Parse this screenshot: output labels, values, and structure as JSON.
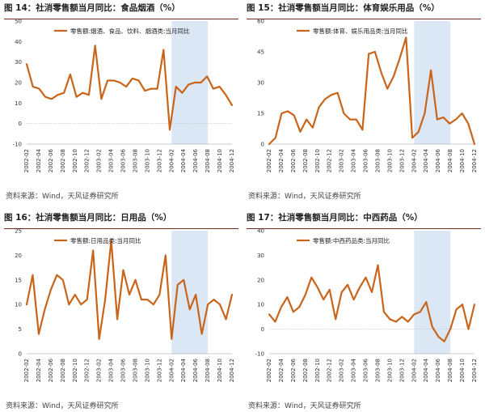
{
  "colors": {
    "line": "#c8651b",
    "shade": "#dbe7f5",
    "title_rule": "#7a2a1f"
  },
  "charts": [
    {
      "title": "图 14：社消零售额当月同比：食品烟酒（%）",
      "source": "资料来源：Wind，天风证券研究所"
    },
    {
      "title": "图 15：社消零售额当月同比：体育娱乐用品（%）",
      "source": "资料来源：Wind，天风证券研究所"
    },
    {
      "title": "图 16：社消零售额当月同比：日用品（%）",
      "source": "资料来源：Wind，天风证券研究所"
    },
    {
      "title": "图 17：社消零售额当月同比：中西药品（%）",
      "source": "资料来源：Wind，天风证券研究所"
    }
  ],
  "chart_data": [
    {
      "type": "line",
      "legend": "零售额:烟酒、食品、饮料、烟酒类:当月同比",
      "x_ticks": [
        "2002-02",
        "2002-04",
        "2002-06",
        "2002-08",
        "2002-10",
        "2002-12",
        "2003-02",
        "2003-04",
        "2003-06",
        "2003-08",
        "2003-10",
        "2003-12",
        "2004-02",
        "2004-04",
        "2004-06",
        "2004-08",
        "2004-10",
        "2004-12"
      ],
      "ylim": [
        -10,
        50
      ],
      "y_ticks": [
        -10,
        0,
        10,
        20,
        30,
        40,
        50
      ],
      "shade_range": [
        12,
        15
      ],
      "series": [
        {
          "name": "零售额:烟酒、食品、饮料、烟酒类:当月同比",
          "values": [
            29,
            18,
            17,
            13,
            12,
            14,
            15,
            24,
            13,
            15,
            14,
            38,
            12,
            21,
            21,
            20,
            18,
            22,
            21,
            16,
            17,
            17,
            36,
            -3,
            18,
            15,
            19,
            20,
            20,
            23,
            17,
            18,
            14,
            9
          ]
        }
      ]
    },
    {
      "type": "line",
      "legend": "零售额:体育、娱乐用品类:当月同比",
      "x_ticks": [
        "2002-02",
        "2002-04",
        "2002-06",
        "2002-08",
        "2002-10",
        "2002-12",
        "2003-02",
        "2003-04",
        "2003-06",
        "2003-08",
        "2003-10",
        "2003-12",
        "2004-02",
        "2004-04",
        "2004-06",
        "2004-08",
        "2004-10",
        "2004-12"
      ],
      "ylim": [
        0,
        60
      ],
      "y_ticks": [
        0,
        15,
        30,
        45,
        60
      ],
      "shade_range": [
        12,
        15
      ],
      "series": [
        {
          "name": "零售额:体育、娱乐用品类:当月同比",
          "values": [
            0,
            3,
            15,
            16,
            14,
            6,
            12,
            8,
            18,
            22,
            24,
            25,
            15,
            12,
            12,
            7,
            44,
            45,
            35,
            27,
            33,
            42,
            52,
            3,
            6,
            15,
            36,
            12,
            13,
            10,
            12,
            15,
            10,
            0
          ]
        }
      ]
    },
    {
      "type": "line",
      "legend": "零售额:日用品类:当月同比",
      "x_ticks": [
        "2002-02",
        "2002-04",
        "2002-06",
        "2002-08",
        "2002-10",
        "2002-12",
        "2003-02",
        "2003-04",
        "2003-06",
        "2003-08",
        "2003-10",
        "2003-12",
        "2004-02",
        "2004-04",
        "2004-06",
        "2004-08",
        "2004-10",
        "2004-12"
      ],
      "ylim": [
        0,
        25
      ],
      "y_ticks": [
        0,
        5,
        10,
        15,
        20,
        25
      ],
      "shade_range": [
        12,
        15
      ],
      "series": [
        {
          "name": "零售额:日用品类:当月同比",
          "values": [
            10,
            16,
            4,
            9,
            13,
            16,
            15,
            10,
            12,
            10,
            11,
            21,
            3,
            11,
            23,
            7,
            17,
            12,
            15,
            11,
            11,
            10,
            12,
            20,
            3,
            14,
            15,
            9,
            12,
            4,
            10,
            11,
            10,
            7,
            12
          ]
        }
      ]
    },
    {
      "type": "line",
      "legend": "零售额:中西药品类:当月同比",
      "x_ticks": [
        "2002-02",
        "2002-04",
        "2002-06",
        "2002-08",
        "2002-10",
        "2002-12",
        "2003-02",
        "2003-04",
        "2003-06",
        "2003-08",
        "2003-10",
        "2003-12",
        "2004-02",
        "2004-04",
        "2004-06",
        "2004-08",
        "2004-10",
        "2004-12"
      ],
      "ylim": [
        -10,
        40
      ],
      "y_ticks": [
        -10,
        0,
        10,
        20,
        30,
        40
      ],
      "shade_range": [
        12,
        15
      ],
      "series": [
        {
          "name": "零售额:中西药品类:当月同比",
          "values": [
            6,
            3,
            9,
            13,
            7,
            9,
            14,
            21,
            17,
            12,
            16,
            4,
            15,
            18,
            12,
            17,
            21,
            15,
            26,
            7,
            4,
            3,
            5,
            3,
            6,
            7,
            11,
            1,
            -3,
            -5,
            0,
            8,
            10,
            0,
            10
          ]
        }
      ]
    }
  ]
}
